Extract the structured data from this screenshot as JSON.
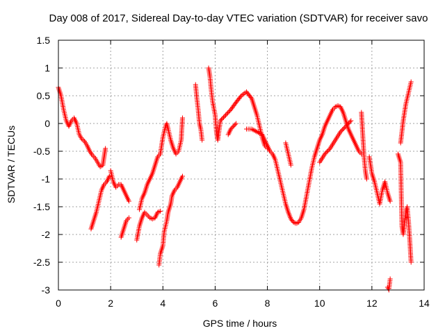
{
  "chart_data": {
    "type": "scatter",
    "title": "Day 008 of 2017, Sidereal Day-to-day VTEC variation (SDTVAR) for receiver savo",
    "xlabel": "GPS time / hours",
    "ylabel": "SDTVAR / TECUs",
    "xlim": [
      0,
      14
    ],
    "ylim": [
      -3,
      1.5
    ],
    "xticks": [
      0,
      2,
      4,
      6,
      8,
      10,
      12,
      14
    ],
    "yticks": [
      -3,
      -2.5,
      -2,
      -1.5,
      -1,
      -0.5,
      0,
      0.5,
      1,
      1.5
    ],
    "grid": true,
    "marker": "+",
    "color": "#ff0000",
    "series": [
      {
        "name": "SDTVAR",
        "segments": [
          [
            [
              0.0,
              0.65
            ],
            [
              0.1,
              0.5
            ],
            [
              0.2,
              0.25
            ],
            [
              0.3,
              0.05
            ],
            [
              0.4,
              -0.05
            ],
            [
              0.5,
              0.05
            ],
            [
              0.6,
              0.1
            ],
            [
              0.7,
              0.0
            ],
            [
              0.8,
              -0.2
            ],
            [
              0.9,
              -0.28
            ],
            [
              1.0,
              -0.32
            ],
            [
              1.1,
              -0.4
            ],
            [
              1.2,
              -0.5
            ],
            [
              1.3,
              -0.57
            ],
            [
              1.4,
              -0.62
            ],
            [
              1.5,
              -0.7
            ],
            [
              1.6,
              -0.78
            ],
            [
              1.7,
              -0.75
            ],
            [
              1.75,
              -0.6
            ],
            [
              1.8,
              -0.45
            ]
          ],
          [
            [
              1.25,
              -1.9
            ],
            [
              1.35,
              -1.75
            ],
            [
              1.45,
              -1.6
            ],
            [
              1.55,
              -1.4
            ],
            [
              1.65,
              -1.2
            ],
            [
              1.75,
              -1.1
            ],
            [
              1.85,
              -1.05
            ],
            [
              1.95,
              -0.95
            ]
          ],
          [
            [
              2.0,
              -0.85
            ],
            [
              2.1,
              -1.05
            ],
            [
              2.2,
              -1.15
            ],
            [
              2.3,
              -1.1
            ],
            [
              2.4,
              -1.1
            ],
            [
              2.5,
              -1.2
            ],
            [
              2.6,
              -1.3
            ],
            [
              2.7,
              -1.4
            ]
          ],
          [
            [
              2.4,
              -2.05
            ],
            [
              2.5,
              -1.9
            ],
            [
              2.6,
              -1.75
            ],
            [
              2.7,
              -1.7
            ]
          ],
          [
            [
              3.0,
              -2.1
            ],
            [
              3.1,
              -1.85
            ],
            [
              3.2,
              -1.7
            ],
            [
              3.3,
              -1.6
            ],
            [
              3.4,
              -1.65
            ],
            [
              3.5,
              -1.7
            ],
            [
              3.6,
              -1.72
            ],
            [
              3.7,
              -1.7
            ],
            [
              3.8,
              -1.6
            ],
            [
              3.9,
              -1.58
            ]
          ],
          [
            [
              3.1,
              -1.55
            ],
            [
              3.2,
              -1.35
            ],
            [
              3.3,
              -1.25
            ],
            [
              3.4,
              -1.1
            ],
            [
              3.5,
              -1.0
            ],
            [
              3.6,
              -0.9
            ],
            [
              3.7,
              -0.75
            ],
            [
              3.8,
              -0.6
            ],
            [
              3.9,
              -0.55
            ],
            [
              4.0,
              -0.25
            ],
            [
              4.1,
              -0.05
            ],
            [
              4.15,
              0.0
            ],
            [
              4.2,
              -0.1
            ],
            [
              4.3,
              -0.3
            ],
            [
              4.4,
              -0.45
            ],
            [
              4.5,
              -0.55
            ],
            [
              4.6,
              -0.5
            ],
            [
              4.7,
              -0.3
            ],
            [
              4.75,
              0.1
            ]
          ],
          [
            [
              3.85,
              -2.55
            ],
            [
              3.9,
              -2.35
            ],
            [
              4.0,
              -2.2
            ],
            [
              4.05,
              -1.95
            ],
            [
              4.15,
              -1.75
            ],
            [
              4.2,
              -1.6
            ],
            [
              4.3,
              -1.45
            ],
            [
              4.35,
              -1.3
            ],
            [
              4.45,
              -1.2
            ],
            [
              4.55,
              -1.15
            ],
            [
              4.65,
              -1.05
            ],
            [
              4.75,
              -0.95
            ]
          ],
          [
            [
              5.25,
              0.7
            ],
            [
              5.3,
              0.45
            ],
            [
              5.35,
              0.25
            ],
            [
              5.4,
              0.0
            ],
            [
              5.45,
              -0.1
            ],
            [
              5.5,
              -0.3
            ]
          ],
          [
            [
              5.75,
              1.0
            ],
            [
              5.8,
              0.85
            ],
            [
              5.85,
              0.6
            ],
            [
              5.9,
              0.4
            ],
            [
              6.0,
              0.15
            ],
            [
              6.05,
              -0.15
            ],
            [
              6.1,
              -0.3
            ],
            [
              6.2,
              0.05
            ]
          ],
          [
            [
              6.2,
              0.05
            ],
            [
              6.4,
              0.15
            ],
            [
              6.6,
              0.25
            ],
            [
              6.8,
              0.38
            ],
            [
              7.0,
              0.5
            ],
            [
              7.2,
              0.57
            ],
            [
              7.4,
              0.45
            ],
            [
              7.5,
              0.3
            ],
            [
              7.6,
              0.15
            ],
            [
              7.7,
              -0.05
            ],
            [
              7.8,
              -0.25
            ],
            [
              7.9,
              -0.4
            ],
            [
              8.0,
              -0.45
            ]
          ],
          [
            [
              6.5,
              -0.2
            ],
            [
              6.6,
              -0.1
            ],
            [
              6.8,
              0.0
            ]
          ],
          [
            [
              7.2,
              -0.1
            ],
            [
              7.4,
              -0.1
            ],
            [
              7.6,
              -0.15
            ],
            [
              7.8,
              -0.2
            ],
            [
              7.9,
              -0.3
            ],
            [
              8.0,
              -0.4
            ],
            [
              8.1,
              -0.5
            ],
            [
              8.2,
              -0.55
            ],
            [
              8.3,
              -0.65
            ],
            [
              8.4,
              -0.85
            ],
            [
              8.5,
              -1.05
            ],
            [
              8.6,
              -1.25
            ],
            [
              8.7,
              -1.45
            ],
            [
              8.8,
              -1.6
            ],
            [
              8.9,
              -1.72
            ],
            [
              9.0,
              -1.78
            ],
            [
              9.1,
              -1.8
            ],
            [
              9.2,
              -1.78
            ],
            [
              9.3,
              -1.7
            ],
            [
              9.4,
              -1.55
            ],
            [
              9.5,
              -1.3
            ],
            [
              9.6,
              -1.05
            ],
            [
              9.7,
              -0.8
            ],
            [
              9.8,
              -0.6
            ],
            [
              9.9,
              -0.45
            ],
            [
              10.0,
              -0.3
            ],
            [
              10.1,
              -0.2
            ],
            [
              10.2,
              -0.05
            ],
            [
              10.3,
              0.05
            ],
            [
              10.4,
              0.15
            ],
            [
              10.5,
              0.25
            ],
            [
              10.6,
              0.3
            ],
            [
              10.7,
              0.32
            ],
            [
              10.8,
              0.3
            ],
            [
              10.9,
              0.2
            ],
            [
              11.0,
              0.05
            ],
            [
              11.1,
              -0.1
            ],
            [
              11.2,
              -0.2
            ],
            [
              11.3,
              -0.3
            ],
            [
              11.4,
              -0.4
            ],
            [
              11.5,
              -0.5
            ],
            [
              11.6,
              -0.55
            ]
          ],
          [
            [
              8.7,
              -0.35
            ],
            [
              8.8,
              -0.55
            ],
            [
              8.9,
              -0.75
            ]
          ],
          [
            [
              10.0,
              -0.7
            ],
            [
              10.2,
              -0.55
            ],
            [
              10.4,
              -0.45
            ],
            [
              10.6,
              -0.3
            ],
            [
              10.8,
              -0.15
            ],
            [
              11.0,
              -0.05
            ],
            [
              11.2,
              0.05
            ]
          ],
          [
            [
              11.6,
              0.2
            ],
            [
              11.65,
              -0.2
            ],
            [
              11.7,
              -0.6
            ],
            [
              11.75,
              -0.85
            ],
            [
              11.8,
              -1.0
            ]
          ],
          [
            [
              11.9,
              -0.6
            ],
            [
              12.0,
              -0.9
            ],
            [
              12.1,
              -1.05
            ],
            [
              12.2,
              -1.25
            ],
            [
              12.3,
              -1.45
            ],
            [
              12.4,
              -1.2
            ],
            [
              12.5,
              -1.05
            ],
            [
              12.6,
              -1.25
            ],
            [
              12.7,
              -1.4
            ]
          ],
          [
            [
              12.6,
              -2.95
            ],
            [
              12.65,
              -3.0
            ],
            [
              12.7,
              -2.8
            ]
          ],
          [
            [
              13.0,
              -0.55
            ],
            [
              13.1,
              -0.7
            ],
            [
              13.15,
              -1.85
            ],
            [
              13.2,
              -2.0
            ],
            [
              13.3,
              -1.6
            ],
            [
              13.35,
              -1.5
            ],
            [
              13.4,
              -1.75
            ],
            [
              13.45,
              -2.1
            ],
            [
              13.5,
              -2.5
            ]
          ],
          [
            [
              13.1,
              -0.35
            ],
            [
              13.2,
              0.05
            ],
            [
              13.3,
              0.35
            ],
            [
              13.4,
              0.55
            ],
            [
              13.5,
              0.75
            ]
          ]
        ]
      }
    ]
  }
}
